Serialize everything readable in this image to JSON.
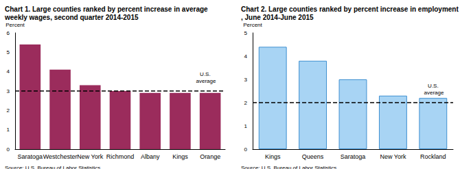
{
  "chart_data": [
    {
      "type": "bar",
      "title": "Chart 1. Large counties ranked by percent increase in average weekly wages, second quarter 2014-2015",
      "y_label": "Percent",
      "source": "Source: U.S. Bureau of Labor Statistics.",
      "categories": [
        "Saratoga",
        "Westchester",
        "New York",
        "Richmond",
        "Albany",
        "Kings",
        "Orange"
      ],
      "values": [
        5.4,
        4.1,
        3.3,
        3.0,
        2.9,
        2.9,
        2.9
      ],
      "color": "#9b2c5c",
      "ylim": [
        0,
        6
      ],
      "yticks": [
        0,
        1,
        2,
        3,
        4,
        5,
        6
      ],
      "grid": false,
      "annotations": [
        {
          "text": "U.S. average",
          "y": 3.0
        }
      ]
    },
    {
      "type": "bar",
      "title": "Chart 2. Large counties ranked by percent increase in employment, June 2014-June 2015",
      "y_label": "Percent",
      "source": "Source: U.S. Bureau of Labor Statistics.",
      "categories": [
        "Kings",
        "Queens",
        "Saratoga",
        "New York",
        "Rockland"
      ],
      "values": [
        4.4,
        3.8,
        3.0,
        2.3,
        2.2
      ],
      "color": "#a8d4f4",
      "ylim": [
        0,
        5
      ],
      "yticks": [
        0,
        1,
        2,
        3,
        4,
        5
      ],
      "grid": false,
      "annotations": [
        {
          "text": "U.S. average",
          "y": 2.0
        }
      ]
    }
  ]
}
